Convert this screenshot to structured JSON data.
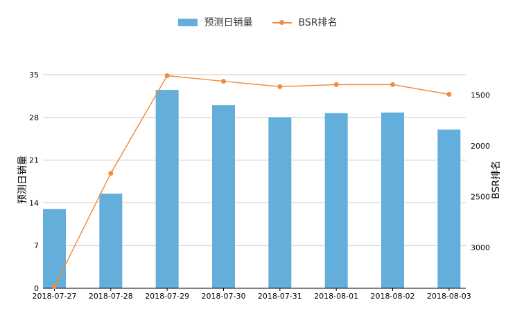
{
  "legend": {
    "bar_label": "预测日销量",
    "line_label": "BSR排名"
  },
  "colors": {
    "bar": "#63aedb",
    "line": "#f28c41",
    "grid": "#c8c8c8",
    "axis": "#000000"
  },
  "chart_data": {
    "type": "bar+line",
    "categories": [
      "2018-07-27",
      "2018-07-28",
      "2018-07-29",
      "2018-07-30",
      "2018-07-31",
      "2018-08-01",
      "2018-08-02",
      "2018-08-03"
    ],
    "series": [
      {
        "name": "预测日销量",
        "type": "bar",
        "axis": "left",
        "values": [
          13,
          15.5,
          32.5,
          30,
          28,
          28.7,
          28.8,
          26
        ]
      },
      {
        "name": "BSR排名",
        "type": "line",
        "axis": "right",
        "values": [
          3385,
          2270,
          1310,
          1365,
          1418,
          1398,
          1398,
          1493
        ]
      }
    ],
    "y_left": {
      "label": "预测日销量",
      "ylim": [
        0,
        35
      ],
      "ticks": [
        0,
        7,
        14,
        21,
        28,
        35
      ]
    },
    "y_right": {
      "label": "BSR排名",
      "ylim": [
        1300,
        3400
      ],
      "inverted": true,
      "ticks": [
        1500,
        2000,
        2500,
        3000
      ]
    },
    "grid": true,
    "legend_position": "top-center"
  }
}
